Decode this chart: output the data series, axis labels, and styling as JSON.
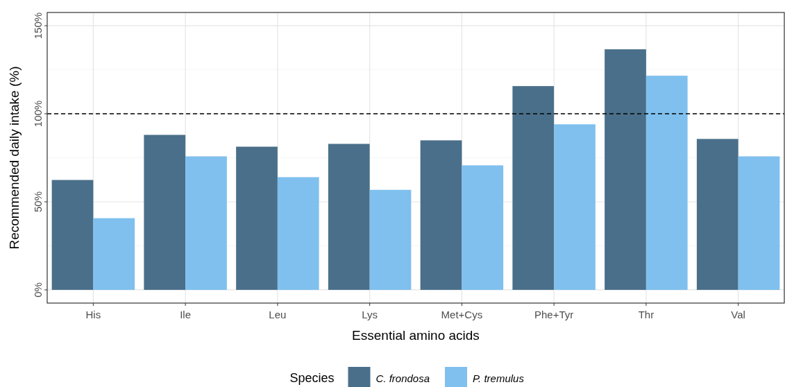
{
  "chart_data": {
    "type": "bar",
    "xlabel": "Essential amino acids",
    "ylabel": "Recommended daily intake (%)",
    "legend_title": "Species",
    "categories": [
      "His",
      "Ile",
      "Leu",
      "Lys",
      "Met+Cys",
      "Phe+Tyr",
      "Thr",
      "Val"
    ],
    "series": [
      {
        "name": "C. frondosa",
        "color": "#4a6f8a",
        "values": [
          62.4,
          88,
          81.3,
          82.9,
          84.9,
          115.7,
          136.6,
          85.7
        ]
      },
      {
        "name": "P. tremulus",
        "color": "#7fc0ee",
        "values": [
          40.7,
          75.8,
          64,
          56.8,
          70.7,
          94,
          121.6,
          75.8
        ]
      }
    ],
    "ylim": [
      -7.5,
      157.5
    ],
    "yticks": [
      {
        "value": 0,
        "label": "0%"
      },
      {
        "value": 50,
        "label": "50%"
      },
      {
        "value": 100,
        "label": "100%"
      },
      {
        "value": 150,
        "label": "150%"
      }
    ],
    "ref_lines": [
      {
        "axis": "y",
        "value": 100,
        "label": null,
        "line_style": "dashed",
        "color": "#000000"
      }
    ],
    "grid": true,
    "legend": "bottom"
  }
}
